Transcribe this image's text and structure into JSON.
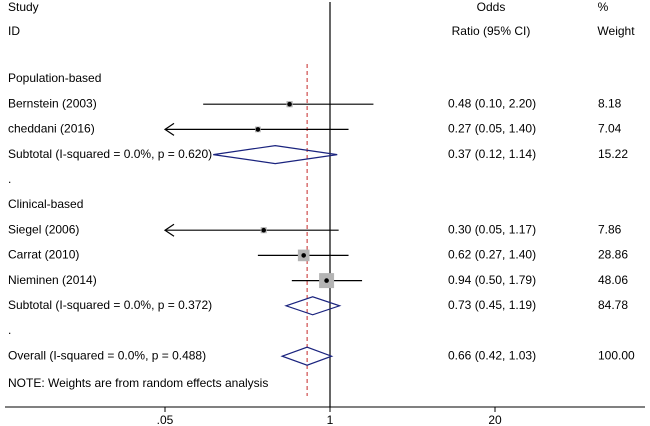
{
  "chart_data": {
    "type": "forest",
    "headers": {
      "study": [
        "Study",
        "ID"
      ],
      "effect": [
        "Odds",
        "Ratio (95% CI)"
      ],
      "weight": [
        "%",
        "Weight"
      ]
    },
    "groups": [
      {
        "name": "Population-based",
        "studies": [
          {
            "name": "Bernstein (2003)",
            "or": 0.48,
            "ci": [
              0.1,
              2.2
            ],
            "ci_label": "0.48 (0.10, 2.20)",
            "weight": 8.18
          },
          {
            "name": "cheddani (2016)",
            "or": 0.27,
            "ci": [
              0.05,
              1.4
            ],
            "ci_label": "0.27 (0.05, 1.40)",
            "weight": 7.04
          }
        ],
        "subtotal": {
          "name": "Subtotal  (I-squared = 0.0%, p = 0.620)",
          "or": 0.37,
          "ci": [
            0.12,
            1.14
          ],
          "ci_label": "0.37 (0.12, 1.14)",
          "weight": 15.22
        },
        "separator": "."
      },
      {
        "name": "Clinical-based",
        "studies": [
          {
            "name": "Siegel (2006)",
            "or": 0.3,
            "ci": [
              0.05,
              1.17
            ],
            "ci_label": "0.30 (0.05, 1.17)",
            "weight": 7.86
          },
          {
            "name": "Carrat (2010)",
            "or": 0.62,
            "ci": [
              0.27,
              1.4
            ],
            "ci_label": "0.62 (0.27, 1.40)",
            "weight": 28.86
          },
          {
            "name": "Nieminen (2014)",
            "or": 0.94,
            "ci": [
              0.5,
              1.79
            ],
            "ci_label": "0.94 (0.50, 1.79)",
            "weight": 48.06
          }
        ],
        "subtotal": {
          "name": "Subtotal  (I-squared = 0.0%, p = 0.372)",
          "or": 0.73,
          "ci": [
            0.45,
            1.19
          ],
          "ci_label": "0.73 (0.45, 1.19)",
          "weight": 84.78
        },
        "separator": "."
      }
    ],
    "overall": {
      "name": "Overall  (I-squared = 0.0%, p = 0.488)",
      "or": 0.66,
      "ci": [
        0.42,
        1.03
      ],
      "ci_label": "0.66 (0.42, 1.03)",
      "weight": 100,
      "weight_label": "100.00"
    },
    "note": "NOTE: Weights are from random effects analysis",
    "xscale": "log",
    "xlim": [
      0.05,
      20
    ],
    "xticks": [
      {
        "value": 0.05,
        "label": ".05"
      },
      1,
      20
    ],
    "null_value": 1,
    "box_color": "#b4b4b4",
    "diamond_color": "#1a237e",
    "overall_line_color": "#c62828"
  }
}
